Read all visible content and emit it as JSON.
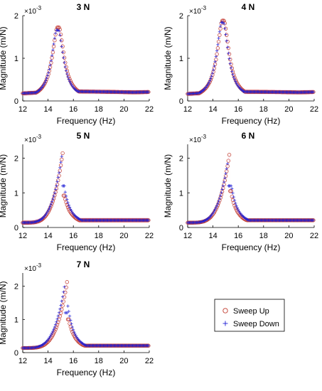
{
  "figure": {
    "legend": {
      "up": "Sweep Up",
      "down": "Sweep Down"
    },
    "colors": {
      "up": "#c0392b",
      "down": "#1f1fd6",
      "shade": "#f7c6e0",
      "axis": "#000000"
    }
  },
  "chart_data": [
    {
      "type": "scatter",
      "title": "3 N",
      "xlabel": "Frequency (Hz)",
      "ylabel": "Magnitude (m/N)",
      "exponent_label": "×10",
      "exponent_power": "-3",
      "xlim": [
        12,
        22
      ],
      "ylim": [
        0,
        2
      ],
      "xticks": [
        12,
        14,
        16,
        18,
        20,
        22
      ],
      "yticks": [
        0,
        1,
        2
      ],
      "f0": 14.8,
      "peak": 1.72,
      "base": 0.15,
      "tail": 0.21,
      "shade_band": 0.06,
      "series": [
        {
          "name": "Sweep Up",
          "marker": "circle",
          "jump_at": null,
          "peak_value": 1.72,
          "drop_to": null
        },
        {
          "name": "Sweep Down",
          "marker": "plus",
          "jump_at": null,
          "peak_value": 1.66,
          "drop_to": null
        }
      ]
    },
    {
      "type": "scatter",
      "title": "4 N",
      "xlabel": "Frequency (Hz)",
      "ylabel": "Magnitude (m/N)",
      "exponent_label": "×10",
      "exponent_power": "-3",
      "xlim": [
        12,
        22
      ],
      "ylim": [
        0,
        2
      ],
      "xticks": [
        12,
        14,
        16,
        18,
        20,
        22
      ],
      "yticks": [
        0,
        1,
        2
      ],
      "f0": 14.8,
      "peak": 1.88,
      "base": 0.14,
      "tail": 0.21,
      "shade_band": 0.06,
      "series": [
        {
          "name": "Sweep Up",
          "marker": "circle",
          "jump_at": null,
          "peak_value": 1.88,
          "drop_to": null
        },
        {
          "name": "Sweep Down",
          "marker": "plus",
          "jump_at": null,
          "peak_value": 1.84,
          "drop_to": null
        }
      ]
    },
    {
      "type": "scatter",
      "title": "5 N",
      "xlabel": "Frequency (Hz)",
      "ylabel": "Magnitude (m/N)",
      "exponent_label": "×10",
      "exponent_power": "-3",
      "xlim": [
        12,
        22
      ],
      "ylim": [
        0,
        2.4
      ],
      "xticks": [
        12,
        14,
        16,
        18,
        20,
        22
      ],
      "yticks": [
        0,
        1,
        2
      ],
      "f0": 15.0,
      "peak": 2.28,
      "base": 0.14,
      "tail": 0.21,
      "shade_band": 0.08,
      "series": [
        {
          "name": "Sweep Up",
          "marker": "circle",
          "jump_at": 15.2,
          "peak_value": 2.28,
          "drop_to": 0.92
        },
        {
          "name": "Sweep Down",
          "marker": "plus",
          "jump_at": 15.1,
          "peak_value": 2.1,
          "drop_to": 1.2
        }
      ]
    },
    {
      "type": "scatter",
      "title": "6 N",
      "xlabel": "Frequency (Hz)",
      "ylabel": "Magnitude (m/N)",
      "exponent_label": "×10",
      "exponent_power": "-3",
      "xlim": [
        12,
        22
      ],
      "ylim": [
        0,
        2.4
      ],
      "xticks": [
        12,
        14,
        16,
        18,
        20,
        22
      ],
      "yticks": [
        0,
        1,
        2
      ],
      "f0": 15.2,
      "peak": 2.25,
      "base": 0.14,
      "tail": 0.21,
      "shade_band": 0.05,
      "series": [
        {
          "name": "Sweep Up",
          "marker": "circle",
          "jump_at": 15.35,
          "peak_value": 2.25,
          "drop_to": 1.05
        },
        {
          "name": "Sweep Down",
          "marker": "plus",
          "jump_at": 15.2,
          "peak_value": 1.95,
          "drop_to": 1.2
        }
      ]
    },
    {
      "type": "scatter",
      "title": "7 N",
      "xlabel": "Frequency (Hz)",
      "ylabel": "Magnitude (m/N)",
      "exponent_label": "×10",
      "exponent_power": "-3",
      "xlim": [
        12,
        22
      ],
      "ylim": [
        0,
        2.4
      ],
      "xticks": [
        12,
        14,
        16,
        18,
        20,
        22
      ],
      "yticks": [
        0,
        1,
        2
      ],
      "f0": 15.4,
      "peak": 2.25,
      "base": 0.14,
      "tail": 0.21,
      "shade_band": 0.05,
      "series": [
        {
          "name": "Sweep Up",
          "marker": "circle",
          "jump_at": 15.55,
          "peak_value": 2.25,
          "drop_to": 1.0
        },
        {
          "name": "Sweep Down",
          "marker": "plus",
          "jump_at": 15.3,
          "peak_value": 2.0,
          "drop_to": 1.2
        }
      ]
    }
  ]
}
